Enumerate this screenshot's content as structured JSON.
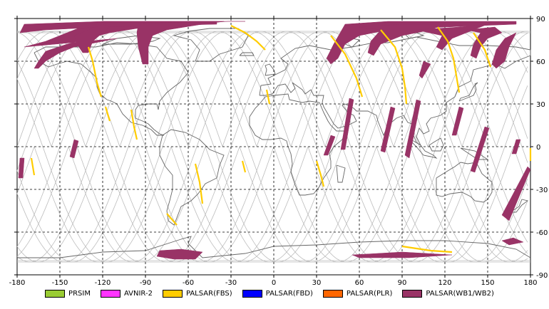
{
  "map": {
    "x_ticks": [
      "-180",
      "-150",
      "-120",
      "-90",
      "-60",
      "-30",
      "0",
      "30",
      "60",
      "90",
      "120",
      "150",
      "180"
    ],
    "y_ticks": [
      "90",
      "60",
      "30",
      "0",
      "-30",
      "-60",
      "-90"
    ],
    "x_range": [
      -180,
      180
    ],
    "y_range": [
      -90,
      90
    ],
    "grid": "dashed",
    "colors": {
      "background": "#ffffff",
      "coastline": "#666666",
      "orbit": "#bcbcbc",
      "frame": "#000000"
    }
  },
  "legend": [
    {
      "label": "PRSIM",
      "color": "#99cc33"
    },
    {
      "label": "AVNIR-2",
      "color": "#ff33ff"
    },
    {
      "label": "PALSAR(FBS)",
      "color": "#ffcc00"
    },
    {
      "label": "PALSAR(FBD)",
      "color": "#0000ff"
    },
    {
      "label": "PALSAR(PLR)",
      "color": "#ff6600"
    },
    {
      "label": "PALSAR(WB1/WB2)",
      "color": "#993366"
    }
  ],
  "swaths": {
    "wb": [
      {
        "points": [
          [
            -175,
            70
          ],
          [
            -160,
            74
          ],
          [
            -150,
            78
          ],
          [
            -140,
            82
          ],
          [
            -130,
            86
          ],
          [
            -120,
            88
          ],
          [
            -100,
            88
          ],
          [
            -60,
            88
          ],
          [
            -20,
            88
          ],
          [
            -32,
            88
          ],
          [
            -60,
            86
          ],
          [
            -90,
            84
          ],
          [
            -115,
            80
          ],
          [
            -130,
            76
          ],
          [
            -145,
            72
          ],
          [
            -160,
            67
          ],
          [
            -165,
            60
          ],
          [
            -168,
            55
          ],
          [
            -165,
            55
          ],
          [
            -160,
            60
          ],
          [
            -150,
            66
          ],
          [
            -140,
            70
          ],
          [
            -120,
            74
          ],
          [
            -110,
            76
          ]
        ]
      },
      {
        "points": [
          [
            -175,
            86
          ],
          [
            -120,
            88
          ],
          [
            -40,
            88
          ],
          [
            -40,
            86
          ],
          [
            -120,
            84
          ],
          [
            -160,
            82
          ],
          [
            -178,
            80
          ]
        ]
      },
      {
        "points": [
          [
            -95,
            86
          ],
          [
            -60,
            88
          ],
          [
            -35,
            88
          ],
          [
            -50,
            86
          ],
          [
            -75,
            82
          ],
          [
            -85,
            78
          ],
          [
            -88,
            70
          ],
          [
            -88,
            58
          ],
          [
            -92,
            58
          ],
          [
            -95,
            70
          ],
          [
            -96,
            80
          ]
        ]
      },
      {
        "points": [
          [
            -140,
            78
          ],
          [
            -130,
            82
          ],
          [
            -120,
            86
          ],
          [
            -115,
            84
          ],
          [
            -120,
            80
          ],
          [
            -127,
            74
          ],
          [
            -130,
            66
          ],
          [
            -134,
            66
          ],
          [
            -138,
            72
          ]
        ]
      },
      {
        "points": [
          [
            -80,
            -73
          ],
          [
            -65,
            -72
          ],
          [
            -50,
            -74
          ],
          [
            -55,
            -79
          ],
          [
            -70,
            -79
          ],
          [
            -82,
            -77
          ]
        ]
      },
      {
        "points": [
          [
            50,
            86
          ],
          [
            80,
            88
          ],
          [
            140,
            88
          ],
          [
            170,
            88
          ],
          [
            170,
            86
          ],
          [
            120,
            84
          ],
          [
            80,
            82
          ],
          [
            60,
            78
          ],
          [
            50,
            72
          ],
          [
            45,
            62
          ],
          [
            40,
            58
          ],
          [
            37,
            62
          ],
          [
            42,
            72
          ]
        ]
      },
      {
        "points": [
          [
            60,
            84
          ],
          [
            90,
            86
          ],
          [
            120,
            86
          ],
          [
            110,
            82
          ],
          [
            90,
            78
          ],
          [
            75,
            72
          ],
          [
            70,
            64
          ],
          [
            66,
            66
          ],
          [
            68,
            74
          ],
          [
            75,
            82
          ]
        ]
      },
      {
        "points": [
          [
            100,
            82
          ],
          [
            130,
            84
          ],
          [
            150,
            86
          ],
          [
            140,
            82
          ],
          [
            125,
            76
          ],
          [
            118,
            68
          ],
          [
            114,
            70
          ],
          [
            118,
            78
          ]
        ]
      },
      {
        "points": [
          [
            135,
            82
          ],
          [
            155,
            84
          ],
          [
            160,
            80
          ],
          [
            150,
            76
          ],
          [
            145,
            70
          ],
          [
            142,
            62
          ],
          [
            138,
            64
          ],
          [
            140,
            72
          ],
          [
            145,
            80
          ]
        ]
      },
      {
        "points": [
          [
            162,
            76
          ],
          [
            170,
            80
          ],
          [
            165,
            70
          ],
          [
            162,
            60
          ],
          [
            156,
            55
          ],
          [
            153,
            58
          ],
          [
            156,
            68
          ]
        ]
      },
      {
        "points": [
          [
            105,
            60
          ],
          [
            110,
            58
          ],
          [
            104,
            48
          ],
          [
            102,
            50
          ]
        ]
      },
      {
        "points": [
          [
            100,
            33
          ],
          [
            103,
            32
          ],
          [
            95,
            -8
          ],
          [
            92,
            -6
          ]
        ]
      },
      {
        "points": [
          [
            82,
            28
          ],
          [
            85,
            27
          ],
          [
            78,
            -4
          ],
          [
            75,
            -3
          ]
        ]
      },
      {
        "points": [
          [
            130,
            28
          ],
          [
            133,
            27
          ],
          [
            128,
            8
          ],
          [
            125,
            8
          ]
        ]
      },
      {
        "points": [
          [
            148,
            14
          ],
          [
            151,
            13
          ],
          [
            141,
            -18
          ],
          [
            138,
            -17
          ]
        ]
      },
      {
        "points": [
          [
            170,
            5
          ],
          [
            173,
            5
          ],
          [
            170,
            -5
          ],
          [
            167,
            -5
          ]
        ]
      },
      {
        "points": [
          [
            178,
            -14
          ],
          [
            180,
            -16
          ],
          [
            165,
            -52
          ],
          [
            160,
            -48
          ]
        ]
      },
      {
        "points": [
          [
            53,
            34
          ],
          [
            56,
            33
          ],
          [
            50,
            -2
          ],
          [
            47,
            -2
          ]
        ]
      },
      {
        "points": [
          [
            40,
            8
          ],
          [
            43,
            7
          ],
          [
            38,
            -6
          ],
          [
            35,
            -6
          ]
        ]
      },
      {
        "points": [
          [
            -140,
            5
          ],
          [
            -137,
            4
          ],
          [
            -140,
            -8
          ],
          [
            -143,
            -7
          ]
        ]
      },
      {
        "points": [
          [
            -178,
            -8
          ],
          [
            -175,
            -8
          ],
          [
            -176,
            -22
          ],
          [
            -179,
            -22
          ]
        ]
      },
      {
        "points": [
          [
            55,
            -76
          ],
          [
            90,
            -74
          ],
          [
            125,
            -76
          ],
          [
            95,
            -78
          ],
          [
            60,
            -78
          ]
        ]
      },
      {
        "points": [
          [
            160,
            -66
          ],
          [
            168,
            -64
          ],
          [
            175,
            -67
          ],
          [
            165,
            -69
          ]
        ]
      }
    ],
    "fbs": [
      {
        "points": [
          [
            -130,
            70
          ],
          [
            -127,
            60
          ],
          [
            -124,
            45
          ],
          [
            -121,
            35
          ]
        ]
      },
      {
        "points": [
          [
            -100,
            26
          ],
          [
            -98,
            14
          ],
          [
            -96,
            5
          ]
        ]
      },
      {
        "points": [
          [
            -55,
            -12
          ],
          [
            -52,
            -25
          ],
          [
            -50,
            -40
          ]
        ]
      },
      {
        "points": [
          [
            -170,
            -8
          ],
          [
            -168,
            -20
          ]
        ]
      },
      {
        "points": [
          [
            -30,
            85
          ],
          [
            -20,
            80
          ],
          [
            -12,
            74
          ],
          [
            -6,
            68
          ]
        ]
      },
      {
        "points": [
          [
            40,
            78
          ],
          [
            50,
            65
          ],
          [
            58,
            48
          ],
          [
            62,
            35
          ]
        ]
      },
      {
        "points": [
          [
            75,
            82
          ],
          [
            85,
            70
          ],
          [
            90,
            55
          ],
          [
            92,
            42
          ],
          [
            93,
            30
          ]
        ]
      },
      {
        "points": [
          [
            115,
            84
          ],
          [
            122,
            74
          ],
          [
            126,
            62
          ],
          [
            128,
            50
          ],
          [
            130,
            38
          ]
        ]
      },
      {
        "points": [
          [
            140,
            80
          ],
          [
            148,
            68
          ],
          [
            152,
            56
          ]
        ]
      },
      {
        "points": [
          [
            30,
            -10
          ],
          [
            33,
            -20
          ],
          [
            35,
            -28
          ]
        ]
      },
      {
        "points": [
          [
            -5,
            40
          ],
          [
            -3,
            30
          ]
        ]
      },
      {
        "points": [
          [
            185,
            -1
          ],
          [
            188,
            -10
          ]
        ]
      },
      {
        "points": [
          [
            90,
            -70
          ],
          [
            110,
            -73
          ],
          [
            125,
            -74
          ]
        ]
      },
      {
        "points": [
          [
            -75,
            -47
          ],
          [
            -68,
            -55
          ]
        ]
      },
      {
        "points": [
          [
            -118,
            28
          ],
          [
            -115,
            18
          ]
        ]
      },
      {
        "points": [
          [
            -22,
            -10
          ],
          [
            -20,
            -18
          ]
        ]
      }
    ]
  }
}
